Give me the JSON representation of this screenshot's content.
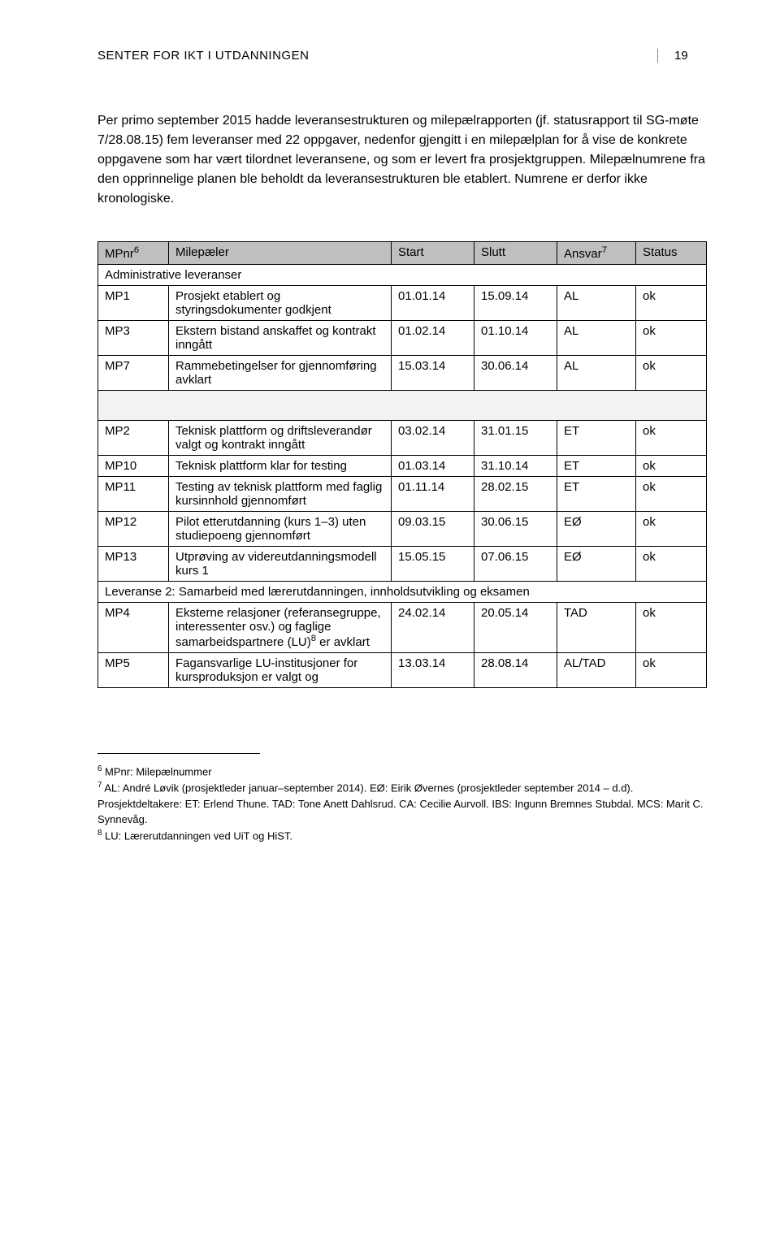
{
  "header": {
    "title": "SENTER FOR IKT I UTDANNINGEN",
    "page_number": "19"
  },
  "intro": "Per primo september 2015 hadde leveransestrukturen og milepælrapporten (jf. statusrapport til SG-møte 7/28.08.15) fem leveranser med 22 oppgaver, nedenfor gjengitt i en milepælplan for å vise de konkrete oppgavene som har vært tilordnet leveransene, og som er levert fra prosjektgruppen. Milepælnumrene fra den opprinnelige planen ble beholdt da leveransestrukturen ble etablert. Numrene er derfor ikke kronologiske.",
  "table": {
    "headers": {
      "mpnr": "MPnr",
      "mpnr_sup": "6",
      "milepaeler": "Milepæler",
      "start": "Start",
      "slutt": "Slutt",
      "ansvar": "Ansvar",
      "ansvar_sup": "7",
      "status": "Status"
    },
    "section1_label": "Administrative leveranser",
    "section1_rows": [
      {
        "mpnr": "MP1",
        "mile": "Prosjekt etablert og styringsdokumenter godkjent",
        "start": "01.01.14",
        "slutt": "15.09.14",
        "ansvar": "AL",
        "status": "ok"
      },
      {
        "mpnr": "MP3",
        "mile": "Ekstern bistand anskaffet og kontrakt inngått",
        "start": "01.02.14",
        "slutt": "01.10.14",
        "ansvar": "AL",
        "status": "ok"
      },
      {
        "mpnr": "MP7",
        "mile": "Rammebetingelser for gjennomføring avklart",
        "start": "15.03.14",
        "slutt": "30.06.14",
        "ansvar": "AL",
        "status": "ok"
      }
    ],
    "section2_rows": [
      {
        "mpnr": "MP2",
        "mile": "Teknisk plattform og driftsleverandør valgt og kontrakt inngått",
        "start": "03.02.14",
        "slutt": "31.01.15",
        "ansvar": "ET",
        "status": "ok"
      },
      {
        "mpnr": "MP10",
        "mile": "Teknisk plattform klar for testing",
        "start": "01.03.14",
        "slutt": "31.10.14",
        "ansvar": "ET",
        "status": "ok"
      },
      {
        "mpnr": "MP11",
        "mile": "Testing av teknisk plattform med faglig kursinnhold gjennomført",
        "start": "01.11.14",
        "slutt": "28.02.15",
        "ansvar": "ET",
        "status": "ok"
      },
      {
        "mpnr": "MP12",
        "mile": "Pilot etterutdanning (kurs 1–3) uten studiepoeng gjennomført",
        "start": "09.03.15",
        "slutt": "30.06.15",
        "ansvar": "EØ",
        "status": "ok"
      },
      {
        "mpnr": "MP13",
        "mile": "Utprøving av videreutdanningsmodell kurs 1",
        "start": "15.05.15",
        "slutt": "07.06.15",
        "ansvar": "EØ",
        "status": "ok"
      }
    ],
    "section3_label": "Leveranse 2: Samarbeid med lærerutdanningen, innholdsutvikling og eksamen",
    "section3_rows": [
      {
        "mpnr": "MP4",
        "mile_html": "Eksterne relasjoner (referansegruppe, interessenter osv.) og faglige samarbeidspartnere (LU)<sup>8</sup> er avklart",
        "start": "24.02.14",
        "slutt": "20.05.14",
        "ansvar": "TAD",
        "status": "ok"
      },
      {
        "mpnr": "MP5",
        "mile": "Fagansvarlige LU-institusjoner for kursproduksjon er valgt og",
        "start": "13.03.14",
        "slutt": "28.08.14",
        "ansvar": "AL/TAD",
        "status": "ok"
      }
    ]
  },
  "footnotes": {
    "fn6_sup": "6",
    "fn6": " MPnr: Milepælnummer",
    "fn7_sup": "7",
    "fn7": " AL: André Løvik (prosjektleder januar–september 2014). EØ: Eirik Øvernes (prosjektleder september 2014 – d.d). Prosjektdeltakere: ET: Erlend Thune. TAD: Tone Anett Dahlsrud. CA: Cecilie Aurvoll. IBS: Ingunn Bremnes Stubdal. MCS: Marit C. Synnevåg.",
    "fn8_sup": "8",
    "fn8": " LU: Lærerutdanningen ved UiT og HiST."
  }
}
